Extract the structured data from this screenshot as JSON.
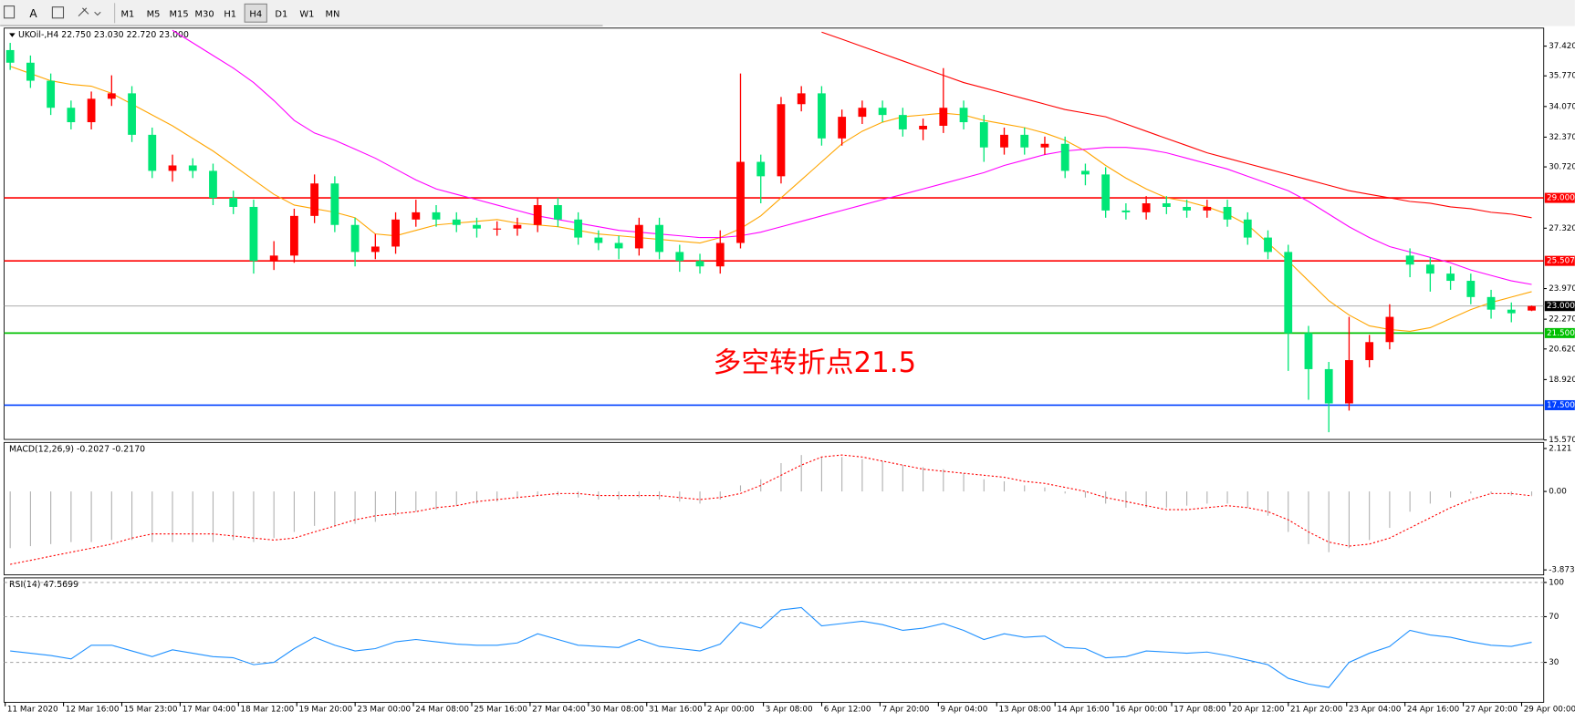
{
  "toolbar": {
    "text_tool": "A",
    "periods": [
      "M1",
      "M5",
      "M15",
      "M30",
      "H1",
      "H4",
      "D1",
      "W1",
      "MN"
    ],
    "active": "H4"
  },
  "chart_data": [
    {
      "type": "candlestick",
      "title": "UKOil-,H4 22.750 23.030 22.720 23.000",
      "up_color": "#ff0000",
      "down_color": "#00e676",
      "open": [
        37.2,
        36.5,
        35.5,
        34.0,
        33.2,
        34.5,
        34.8,
        32.5,
        30.5,
        30.8,
        30.5,
        29.0,
        28.5,
        25.5,
        25.8,
        28.0,
        29.8,
        27.5,
        26.0,
        26.3,
        27.8,
        28.2,
        27.8,
        27.5,
        27.3,
        27.3,
        27.5,
        28.6,
        27.8,
        26.8,
        26.5,
        26.2,
        27.5,
        26.0,
        25.5,
        25.2,
        26.5,
        31.0,
        30.2,
        34.2,
        34.8,
        32.3,
        33.5,
        34.0,
        33.6,
        32.8,
        33.0,
        34.0,
        33.2,
        31.8,
        32.5,
        31.8,
        32.0,
        30.5,
        30.3,
        28.3,
        28.2,
        28.7,
        28.5,
        28.3,
        28.5,
        27.8,
        26.8,
        26.0,
        21.5,
        19.5,
        17.6,
        20.0,
        21.0,
        25.8,
        25.3,
        24.8,
        24.4,
        23.5,
        22.8,
        22.75
      ],
      "high": [
        37.6,
        36.9,
        35.9,
        34.4,
        34.9,
        35.8,
        35.2,
        32.9,
        31.4,
        31.2,
        30.9,
        29.4,
        28.9,
        26.6,
        28.4,
        30.3,
        30.2,
        27.9,
        27.0,
        28.2,
        28.9,
        28.6,
        28.2,
        27.9,
        27.7,
        27.9,
        29.0,
        29.0,
        28.2,
        27.2,
        26.9,
        27.9,
        27.9,
        26.4,
        25.9,
        27.2,
        35.9,
        31.4,
        34.6,
        35.2,
        35.2,
        33.9,
        34.4,
        34.4,
        34.0,
        33.4,
        36.2,
        34.4,
        33.6,
        32.9,
        32.9,
        32.4,
        32.4,
        30.9,
        30.7,
        28.7,
        29.1,
        29.1,
        28.9,
        28.9,
        28.9,
        28.2,
        27.2,
        26.4,
        21.9,
        19.9,
        22.4,
        21.4,
        23.1,
        26.2,
        25.7,
        25.2,
        24.8,
        23.9,
        23.2,
        23.03
      ],
      "low": [
        36.1,
        35.1,
        33.6,
        32.8,
        32.8,
        34.1,
        32.1,
        30.1,
        29.9,
        30.1,
        28.6,
        28.1,
        24.8,
        25.0,
        25.4,
        27.6,
        27.1,
        25.2,
        25.6,
        25.9,
        27.4,
        27.4,
        27.1,
        26.8,
        26.9,
        26.9,
        27.1,
        27.4,
        26.4,
        26.1,
        25.6,
        25.8,
        25.6,
        24.9,
        24.8,
        24.8,
        26.2,
        28.7,
        29.8,
        33.8,
        31.9,
        31.9,
        33.1,
        33.2,
        32.4,
        32.2,
        32.6,
        32.8,
        31.0,
        31.4,
        31.4,
        31.4,
        30.1,
        29.7,
        27.9,
        27.8,
        27.8,
        28.1,
        27.9,
        27.9,
        27.4,
        26.4,
        25.6,
        19.4,
        17.8,
        16.0,
        17.2,
        19.6,
        20.6,
        24.6,
        23.8,
        23.9,
        23.1,
        22.3,
        22.1,
        22.72
      ],
      "close": [
        36.5,
        35.5,
        34.0,
        33.2,
        34.5,
        34.8,
        32.5,
        30.5,
        30.8,
        30.5,
        29.0,
        28.5,
        25.5,
        25.8,
        28.0,
        29.8,
        27.5,
        26.0,
        26.3,
        27.8,
        28.2,
        27.8,
        27.5,
        27.3,
        27.3,
        27.5,
        28.6,
        27.8,
        26.8,
        26.5,
        26.2,
        27.5,
        26.0,
        25.5,
        25.2,
        26.5,
        31.0,
        30.2,
        34.2,
        34.8,
        32.3,
        33.5,
        34.0,
        33.6,
        32.8,
        33.0,
        34.0,
        33.2,
        31.8,
        32.5,
        31.8,
        32.0,
        30.5,
        30.3,
        28.3,
        28.2,
        28.7,
        28.5,
        28.3,
        28.5,
        27.8,
        26.8,
        26.0,
        21.5,
        19.5,
        17.6,
        20.0,
        21.0,
        22.4,
        25.3,
        24.8,
        24.4,
        23.5,
        22.8,
        22.6,
        23.0
      ],
      "series": [
        {
          "color": "#ffa500",
          "values": [
            36.3,
            35.9,
            35.5,
            35.3,
            35.2,
            34.8,
            34.2,
            33.6,
            33.0,
            32.3,
            31.6,
            30.8,
            30.0,
            29.2,
            28.6,
            28.4,
            28.2,
            27.9,
            27.0,
            26.9,
            27.2,
            27.5,
            27.6,
            27.7,
            27.8,
            27.6,
            27.5,
            27.4,
            27.2,
            27.0,
            26.9,
            26.8,
            26.7,
            26.6,
            26.5,
            26.8,
            27.3,
            28.0,
            29.0,
            30.0,
            31.0,
            32.0,
            32.7,
            33.2,
            33.5,
            33.6,
            33.7,
            33.6,
            33.3,
            33.1,
            32.9,
            32.6,
            32.2,
            31.6,
            30.8,
            30.1,
            29.5,
            29.0,
            28.8,
            28.5,
            28.1,
            27.5,
            26.5,
            25.5,
            24.4,
            23.3,
            22.5,
            21.9,
            21.7,
            21.6,
            21.8,
            22.3,
            22.8,
            23.2,
            23.5,
            23.8
          ]
        },
        {
          "color": "#ff00ff",
          "values": [
            null,
            null,
            null,
            null,
            null,
            null,
            null,
            null,
            38.3,
            37.6,
            36.9,
            36.2,
            35.4,
            34.4,
            33.3,
            32.6,
            32.2,
            31.7,
            31.2,
            30.6,
            30.0,
            29.5,
            29.2,
            28.9,
            28.6,
            28.3,
            28.0,
            27.8,
            27.6,
            27.4,
            27.2,
            27.1,
            27.0,
            26.9,
            26.8,
            26.8,
            26.9,
            27.1,
            27.4,
            27.7,
            28.0,
            28.3,
            28.6,
            28.9,
            29.2,
            29.5,
            29.8,
            30.1,
            30.4,
            30.8,
            31.1,
            31.4,
            31.6,
            31.7,
            31.8,
            31.8,
            31.7,
            31.5,
            31.2,
            30.9,
            30.6,
            30.2,
            29.8,
            29.4,
            28.8,
            28.1,
            27.4,
            26.8,
            26.3,
            26.0,
            25.7,
            25.4,
            25.0,
            24.7,
            24.4,
            24.2
          ]
        },
        {
          "color": "#ff0000",
          "values": [
            null,
            null,
            null,
            null,
            null,
            null,
            null,
            null,
            null,
            null,
            null,
            null,
            null,
            null,
            null,
            null,
            null,
            null,
            null,
            null,
            null,
            null,
            null,
            null,
            null,
            null,
            null,
            null,
            null,
            null,
            null,
            null,
            null,
            null,
            null,
            null,
            null,
            null,
            null,
            null,
            38.2,
            37.8,
            37.4,
            37.0,
            36.6,
            36.2,
            35.8,
            35.4,
            35.1,
            34.8,
            34.5,
            34.2,
            33.9,
            33.7,
            33.5,
            33.1,
            32.7,
            32.3,
            31.9,
            31.5,
            31.2,
            30.9,
            30.6,
            30.3,
            30.0,
            29.7,
            29.4,
            29.2,
            29.0,
            28.8,
            28.7,
            28.5,
            28.4,
            28.2,
            28.1,
            27.9
          ]
        }
      ],
      "ylim": [
        15.6,
        38.42
      ],
      "yticks": [
        {
          "value": 37.42,
          "label": "37.420"
        },
        {
          "value": 35.77,
          "label": "35.770"
        },
        {
          "value": 34.07,
          "label": "34.070"
        },
        {
          "value": 32.37,
          "label": "32.370"
        },
        {
          "value": 30.72,
          "label": "30.720"
        },
        {
          "value": 27.32,
          "label": "27.320"
        },
        {
          "value": 23.97,
          "label": "23.970"
        },
        {
          "value": 22.27,
          "label": "22.270"
        },
        {
          "value": 20.62,
          "label": "20.620"
        },
        {
          "value": 18.92,
          "label": "18.920"
        },
        {
          "value": 15.57,
          "label": "15.570"
        }
      ],
      "hlines": [
        {
          "value": 29,
          "label": "29.000",
          "color": "#ff0000"
        },
        {
          "value": 25.507,
          "label": "25.507",
          "color": "#ff0000"
        },
        {
          "value": 23,
          "label": "23.000",
          "color": "#a0a0a0"
        },
        {
          "value": 21.5,
          "label": "21.500",
          "color": "#00c000"
        },
        {
          "value": 17.5,
          "label": "17.500",
          "color": "#0040ff"
        }
      ],
      "annotation": {
        "text": "多空转折点21.5",
        "color": "#ff0000"
      },
      "xtick_labels": [
        "11 Mar 2020",
        "12 Mar 16:00",
        "15 Mar 23:00",
        "17 Mar 04:00",
        "18 Mar 12:00",
        "19 Mar 20:00",
        "23 Mar 00:00",
        "24 Mar 08:00",
        "25 Mar 16:00",
        "27 Mar 04:00",
        "30 Mar 08:00",
        "31 Mar 16:00",
        "2 Apr 00:00",
        "3 Apr 08:00",
        "6 Apr 12:00",
        "7 Apr 20:00",
        "9 Apr 04:00",
        "13 Apr 08:00",
        "14 Apr 16:00",
        "16 Apr 00:00",
        "17 Apr 08:00",
        "20 Apr 12:00",
        "21 Apr 20:00",
        "23 Apr 04:00",
        "24 Apr 16:00",
        "27 Apr 20:00",
        "29 Apr 00:00"
      ]
    },
    {
      "type": "macd",
      "title": "MACD(12,26,9) -0.2027 -0.2170",
      "series": [
        {
          "style": "histogram",
          "color": "#b0b0b0",
          "values": [
            -2.8,
            -2.7,
            -2.6,
            -2.5,
            -2.5,
            -2.4,
            -2.4,
            -2.5,
            -2.5,
            -2.5,
            -2.5,
            -2.4,
            -2.5,
            -2.3,
            -2.0,
            -1.7,
            -1.7,
            -1.6,
            -1.5,
            -1.2,
            -1.0,
            -0.9,
            -0.7,
            -0.6,
            -0.5,
            -0.3,
            -0.2,
            -0.2,
            -0.3,
            -0.4,
            -0.4,
            -0.3,
            -0.4,
            -0.5,
            -0.6,
            -0.4,
            0.3,
            0.6,
            1.4,
            1.8,
            1.7,
            1.7,
            1.6,
            1.5,
            1.3,
            1.2,
            1.1,
            0.9,
            0.6,
            0.5,
            0.3,
            0.2,
            -0.1,
            -0.3,
            -0.6,
            -0.8,
            -0.8,
            -0.8,
            -0.7,
            -0.6,
            -0.6,
            -0.8,
            -1.2,
            -2.0,
            -2.6,
            -3.0,
            -2.8,
            -2.4,
            -1.8,
            -1.0,
            -0.6,
            -0.3,
            -0.1,
            -0.1,
            -0.2,
            -0.2027
          ]
        },
        {
          "style": "dotted",
          "color": "#ff0000",
          "values": [
            -3.6,
            -3.4,
            -3.2,
            -3.0,
            -2.8,
            -2.6,
            -2.3,
            -2.1,
            -2.1,
            -2.1,
            -2.1,
            -2.2,
            -2.3,
            -2.4,
            -2.3,
            -2.0,
            -1.7,
            -1.4,
            -1.2,
            -1.1,
            -1.0,
            -0.8,
            -0.7,
            -0.5,
            -0.4,
            -0.3,
            -0.2,
            -0.1,
            -0.1,
            -0.2,
            -0.2,
            -0.2,
            -0.2,
            -0.3,
            -0.4,
            -0.3,
            -0.1,
            0.3,
            0.8,
            1.3,
            1.7,
            1.8,
            1.7,
            1.5,
            1.3,
            1.1,
            1.0,
            0.9,
            0.8,
            0.7,
            0.5,
            0.4,
            0.2,
            0.0,
            -0.3,
            -0.5,
            -0.7,
            -0.9,
            -0.9,
            -0.8,
            -0.7,
            -0.8,
            -1.0,
            -1.4,
            -2.0,
            -2.5,
            -2.7,
            -2.6,
            -2.3,
            -1.8,
            -1.3,
            -0.8,
            -0.4,
            -0.1,
            -0.1,
            -0.217
          ]
        }
      ],
      "ylim": [
        -4.12,
        2.42
      ],
      "yticks": [
        2.121,
        {
          "value": 0,
          "label": "0.00"
        },
        -3.8734
      ]
    },
    {
      "type": "line",
      "title": "RSI(14) 47.5699",
      "series": [
        {
          "color": "#1e90ff",
          "values": [
            40,
            38,
            36,
            33,
            45,
            45,
            40,
            35,
            41,
            38,
            35,
            34,
            28,
            30,
            42,
            52,
            45,
            40,
            42,
            48,
            50,
            48,
            46,
            45,
            45,
            47,
            55,
            50,
            45,
            44,
            43,
            50,
            44,
            42,
            40,
            46,
            65,
            60,
            76,
            78,
            62,
            64,
            66,
            63,
            58,
            60,
            64,
            58,
            50,
            55,
            52,
            53,
            43,
            42,
            34,
            35,
            40,
            39,
            38,
            39,
            36,
            32,
            28,
            16,
            11,
            8,
            30,
            38,
            44,
            58,
            54,
            52,
            48,
            45,
            44,
            47.5699
          ]
        }
      ],
      "ylim": [
        -5,
        104
      ],
      "yticks": [
        100,
        70,
        30
      ],
      "grid": "dashed"
    }
  ]
}
